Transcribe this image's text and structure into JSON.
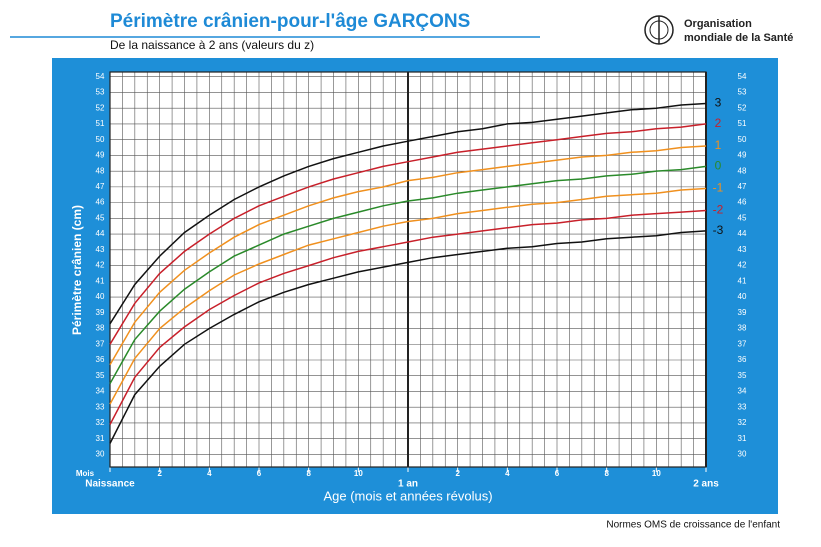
{
  "chart_data": {
    "type": "line",
    "title": "Périmètre crânien-pour-l'âge  GARÇONS",
    "subtitle": "De la naissance à 2 ans (valeurs du z)",
    "y_label": "Périmètre crânien (cm)",
    "x_label": "Age (mois et années révolus)",
    "x_unit": "Mois",
    "x": [
      0,
      1,
      2,
      3,
      4,
      5,
      6,
      7,
      8,
      9,
      10,
      11,
      12,
      13,
      14,
      15,
      16,
      17,
      18,
      19,
      20,
      21,
      22,
      23,
      24
    ],
    "xlim": [
      0,
      24
    ],
    "ylim": [
      29.2,
      54.3
    ],
    "xticks": [
      {
        "value": 0,
        "label": "Naissance"
      },
      2,
      4,
      6,
      8,
      10,
      {
        "value": 12,
        "label": "1 an"
      },
      {
        "value": 14,
        "label": "2"
      },
      {
        "value": 16,
        "label": "4"
      },
      {
        "value": 18,
        "label": "6"
      },
      {
        "value": 20,
        "label": "8"
      },
      {
        "value": 22,
        "label": "10"
      },
      {
        "value": 24,
        "label": "2 ans"
      }
    ],
    "x_year_marks": [
      12,
      24
    ],
    "xgrid": [
      0,
      0.5,
      1,
      1.5,
      2,
      2.5,
      3,
      3.5,
      4,
      4.5,
      5,
      5.5,
      6,
      6.5,
      7,
      7.5,
      8,
      8.5,
      9,
      9.5,
      10,
      10.5,
      11,
      11.5,
      12,
      12.5,
      13,
      13.5,
      14,
      14.5,
      15,
      15.5,
      16,
      16.5,
      17,
      17.5,
      18,
      18.5,
      19,
      19.5,
      20,
      20.5,
      21,
      21.5,
      22,
      22.5,
      23,
      23.5,
      24
    ],
    "yticks": [
      30,
      31,
      32,
      33,
      34,
      35,
      36,
      37,
      38,
      39,
      40,
      41,
      42,
      43,
      44,
      45,
      46,
      47,
      48,
      49,
      50,
      51,
      52,
      53,
      54
    ],
    "grid": true,
    "series": [
      {
        "name": "3",
        "color": "#111111",
        "values": [
          38.3,
          40.8,
          42.6,
          44.1,
          45.2,
          46.2,
          47.0,
          47.7,
          48.3,
          48.8,
          49.2,
          49.6,
          49.9,
          50.2,
          50.5,
          50.7,
          51.0,
          51.1,
          51.3,
          51.5,
          51.7,
          51.9,
          52.0,
          52.2,
          52.3
        ]
      },
      {
        "name": "2",
        "color": "#c8202a",
        "values": [
          37.0,
          39.6,
          41.5,
          42.9,
          44.0,
          45.0,
          45.8,
          46.4,
          47.0,
          47.5,
          47.9,
          48.3,
          48.6,
          48.9,
          49.2,
          49.4,
          49.6,
          49.8,
          50.0,
          50.2,
          50.4,
          50.5,
          50.7,
          50.8,
          51.0
        ]
      },
      {
        "name": "1",
        "color": "#f0901e",
        "values": [
          35.7,
          38.4,
          40.3,
          41.7,
          42.8,
          43.8,
          44.6,
          45.2,
          45.8,
          46.3,
          46.7,
          47.0,
          47.4,
          47.6,
          47.9,
          48.1,
          48.3,
          48.5,
          48.7,
          48.9,
          49.0,
          49.2,
          49.3,
          49.5,
          49.6
        ]
      },
      {
        "name": "0",
        "color": "#2a8a2a",
        "values": [
          34.5,
          37.3,
          39.1,
          40.5,
          41.6,
          42.6,
          43.3,
          44.0,
          44.5,
          45.0,
          45.4,
          45.8,
          46.1,
          46.3,
          46.6,
          46.8,
          47.0,
          47.2,
          47.4,
          47.5,
          47.7,
          47.8,
          48.0,
          48.1,
          48.3
        ]
      },
      {
        "name": "-1",
        "color": "#f0901e",
        "values": [
          33.2,
          36.1,
          38.0,
          39.3,
          40.4,
          41.4,
          42.1,
          42.7,
          43.3,
          43.7,
          44.1,
          44.5,
          44.8,
          45.0,
          45.3,
          45.5,
          45.7,
          45.9,
          46.0,
          46.2,
          46.4,
          46.5,
          46.6,
          46.8,
          46.9
        ]
      },
      {
        "name": "-2",
        "color": "#c8202a",
        "values": [
          31.9,
          34.9,
          36.8,
          38.1,
          39.2,
          40.1,
          40.9,
          41.5,
          42.0,
          42.5,
          42.9,
          43.2,
          43.5,
          43.8,
          44.0,
          44.2,
          44.4,
          44.6,
          44.7,
          44.9,
          45.0,
          45.2,
          45.3,
          45.4,
          45.5
        ]
      },
      {
        "name": "-3",
        "color": "#111111",
        "values": [
          30.7,
          33.8,
          35.6,
          37.0,
          38.0,
          38.9,
          39.7,
          40.3,
          40.8,
          41.2,
          41.6,
          41.9,
          42.2,
          42.5,
          42.7,
          42.9,
          43.1,
          43.2,
          43.4,
          43.5,
          43.7,
          43.8,
          43.9,
          44.1,
          44.2
        ]
      }
    ]
  },
  "logo": {
    "line1": "Organisation",
    "line2": "mondiale de la Santé"
  },
  "footer": "Normes OMS de croissance de l'enfant"
}
